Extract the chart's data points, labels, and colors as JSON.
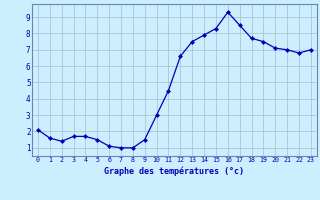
{
  "x": [
    0,
    1,
    2,
    3,
    4,
    5,
    6,
    7,
    8,
    9,
    10,
    11,
    12,
    13,
    14,
    15,
    16,
    17,
    18,
    19,
    20,
    21,
    22,
    23
  ],
  "y": [
    2.1,
    1.6,
    1.4,
    1.7,
    1.7,
    1.5,
    1.1,
    1.0,
    1.0,
    1.5,
    3.0,
    4.5,
    6.6,
    7.5,
    7.9,
    8.3,
    9.3,
    8.5,
    7.7,
    7.5,
    7.1,
    7.0,
    6.8,
    7.0
  ],
  "line_color": "#0000bb",
  "marker": "D",
  "marker_size": 2.0,
  "bg_color": "#cceeff",
  "grid_color": "#aabbcc",
  "xlabel": "Graphe des températures (°c)",
  "ylabel_ticks": [
    1,
    2,
    3,
    4,
    5,
    6,
    7,
    8,
    9
  ],
  "xlim": [
    -0.5,
    23.5
  ],
  "ylim": [
    0.5,
    9.8
  ],
  "tick_color": "#0000bb",
  "axis_label_color": "#0000bb"
}
